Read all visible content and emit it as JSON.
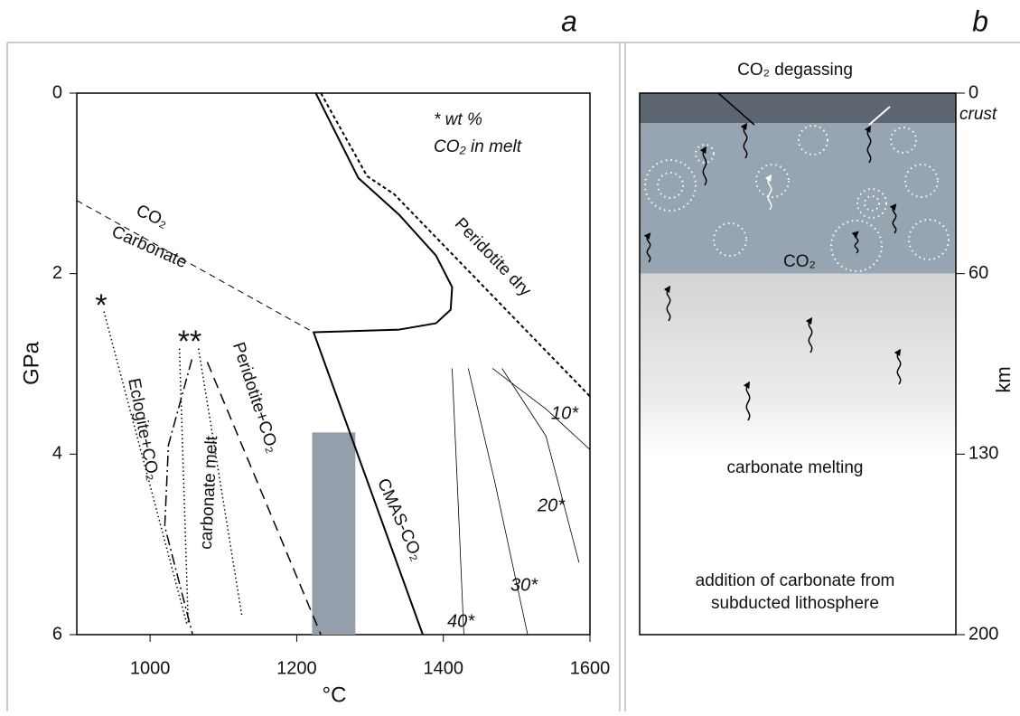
{
  "panel_a": {
    "letter": "a",
    "xlabel": "°C",
    "ylabel": "GPa",
    "xlim": [
      900,
      1600
    ],
    "ylim": [
      0,
      6
    ],
    "xticks": [
      1000,
      1200,
      1400,
      1600
    ],
    "yticks": [
      0,
      2,
      4,
      6
    ],
    "curves": [
      {
        "label": "CMAS-CO₂",
        "style": "solid",
        "width": 2,
        "points": [
          [
            1226,
            0
          ],
          [
            1284,
            0.94
          ],
          [
            1340,
            1.35
          ],
          [
            1390,
            1.8
          ],
          [
            1412,
            2.15
          ],
          [
            1410,
            2.4
          ],
          [
            1390,
            2.55
          ],
          [
            1340,
            2.62
          ],
          [
            1223,
            2.65
          ],
          [
            1372,
            6
          ]
        ]
      },
      {
        "label": "Peridotite dry",
        "style": "shortdash",
        "width": 2,
        "points": [
          [
            1233,
            0
          ],
          [
            1296,
            0.92
          ],
          [
            1333,
            1.12
          ],
          [
            1600,
            3.36
          ]
        ]
      },
      {
        "label": "Carbonate",
        "style": "dashed-thin",
        "width": 1,
        "points": [
          [
            900,
            1.19
          ],
          [
            1223,
            2.65
          ]
        ]
      },
      {
        "label": "Eclogite+CO₂",
        "style": "dashdot",
        "width": 1.5,
        "points": [
          [
            1057,
            2.95
          ],
          [
            1025,
            3.9
          ],
          [
            1020,
            4.8
          ],
          [
            1058,
            6
          ]
        ]
      },
      {
        "label": "Peridotite+CO₂",
        "style": "dashed",
        "width": 1.5,
        "points": [
          [
            1078,
            2.98
          ],
          [
            1233,
            6
          ]
        ]
      },
      {
        "style": "dotted",
        "width": 1.5,
        "points": [
          [
            937,
            2.42
          ],
          [
            1050,
            5.88
          ]
        ]
      },
      {
        "style": "dotted",
        "width": 1.5,
        "points": [
          [
            1040,
            2.83
          ],
          [
            1052,
            5.88
          ]
        ]
      },
      {
        "style": "dotted",
        "width": 1.5,
        "points": [
          [
            1066,
            2.83
          ],
          [
            1125,
            5.78
          ]
        ]
      }
    ],
    "isopleths": [
      {
        "label": "10*",
        "points": [
          [
            1467,
            3.05
          ],
          [
            1540,
            3.5
          ],
          [
            1600,
            3.95
          ]
        ]
      },
      {
        "label": "20*",
        "points": [
          [
            1480,
            3.05
          ],
          [
            1540,
            3.8
          ],
          [
            1585,
            5.2
          ]
        ]
      },
      {
        "label": "30*",
        "points": [
          [
            1434,
            3.05
          ],
          [
            1470,
            4.3
          ],
          [
            1515,
            6
          ]
        ]
      },
      {
        "label": "40*",
        "points": [
          [
            1412,
            3.05
          ],
          [
            1420,
            4.5
          ],
          [
            1428,
            6
          ]
        ]
      }
    ],
    "bar": {
      "x": [
        1221,
        1280
      ],
      "y": [
        3.76,
        6
      ],
      "color": "#949fab"
    },
    "labels": {
      "note_1": "* wt %",
      "note_2": "CO₂ in melt",
      "co2": "CO₂",
      "star_1": "*",
      "star_2": "**",
      "carbonate_melt": "carbonate melt"
    }
  },
  "panel_b": {
    "letter": "b",
    "ylabel": "km",
    "yticks": [
      0,
      60,
      130,
      200
    ],
    "layers": [
      {
        "label": "crust",
        "top": 0,
        "bottom": 10,
        "color": "#5d6670"
      },
      {
        "label": "CO₂",
        "top": 10,
        "bottom": 60,
        "color": "#97a4b1"
      },
      {
        "label": "carbonate melting",
        "top": 60,
        "bottom": 130,
        "color": "#cfcfcf"
      }
    ],
    "title": "CO₂ degassing",
    "bottom_text": [
      "addition of carbonate from",
      "subducted lithosphere"
    ]
  }
}
